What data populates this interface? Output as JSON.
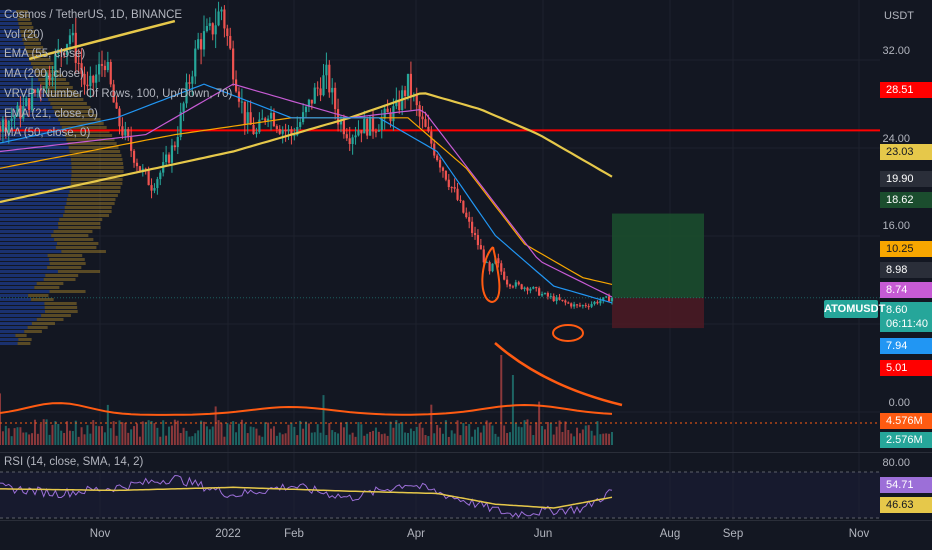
{
  "header": {
    "symbol_line": "Cosmos / TetherUS, 1D, BINANCE",
    "indicators": [
      "Vol (20)",
      "EMA (55, close)",
      "MA (200, close)",
      "VRVP (Number Of Rows, 100, Up/Down, 70)",
      "EMA (21, close, 0)",
      "MA (50, close, 0)"
    ],
    "rsi_label": "RSI (14, close, SMA, 14, 2)",
    "currency": "USDT",
    "symbol_tag": "ATOMUSDT",
    "countdown": "06:11:40"
  },
  "colors": {
    "background": "#131722",
    "up_candle": "#26a69a",
    "down_candle": "#ef5350",
    "ema55": "#f7a600",
    "ma200": "#e6c84a",
    "ema21": "#2196f3",
    "ma50": "#c65bd4",
    "resistance_line": "#ff0000",
    "drawing": "#ff5b12",
    "rsi": "#9c6fd8",
    "rsi_ma": "#e6c84a",
    "long_target": "#1b4d2e",
    "long_stop": "#4a1a23"
  },
  "price_axis": {
    "ticks": [
      "32.00",
      "24.00",
      "16.00",
      "8.00",
      "0.00"
    ],
    "labels": [
      {
        "text": "28.51",
        "color": "#ff0000"
      },
      {
        "text": "23.03",
        "color": "#e6c84a",
        "text_color": "#131722"
      },
      {
        "text": "19.90",
        "color": "#2a2e39"
      },
      {
        "text": "18.62",
        "color": "#1b4d2e"
      },
      {
        "text": "10.25",
        "color": "#f7a600",
        "text_color": "#131722"
      },
      {
        "text": "8.98",
        "color": "#2a2e39"
      },
      {
        "text": "8.74",
        "color": "#c65bd4"
      },
      {
        "text": "8.60",
        "color": "#26a69a"
      },
      {
        "text": "7.94",
        "color": "#2196f3"
      },
      {
        "text": "5.01",
        "color": "#ff0000"
      },
      {
        "text": "4.576M",
        "color": "#ff5b12"
      },
      {
        "text": "2.576M",
        "color": "#26a69a"
      }
    ],
    "rsi_ticks": [
      "80.00"
    ],
    "rsi_labels": [
      {
        "text": "54.71",
        "color": "#9c6fd8"
      },
      {
        "text": "46.63",
        "color": "#e6c84a",
        "text_color": "#131722"
      }
    ]
  },
  "chart_data": {
    "type": "candlestick",
    "title": "Cosmos / TetherUS, 1D, BINANCE",
    "x_ticks": [
      "Nov",
      "2022",
      "Feb",
      "Apr",
      "Jun",
      "Aug",
      "Sep",
      "Nov"
    ],
    "y_unit": "USDT",
    "ylim": [
      3,
      44
    ],
    "resistance_level": 28.51,
    "long_position": {
      "entry": 8.6,
      "target": 18.62,
      "stop": 5.01
    },
    "close_path": [
      [
        0,
        29
      ],
      [
        8,
        31
      ],
      [
        16,
        35
      ],
      [
        24,
        40
      ],
      [
        30,
        33
      ],
      [
        36,
        37
      ],
      [
        40,
        30
      ],
      [
        44,
        27
      ],
      [
        48,
        24
      ],
      [
        52,
        22
      ],
      [
        56,
        24
      ],
      [
        60,
        27
      ],
      [
        64,
        33
      ],
      [
        68,
        39
      ],
      [
        72,
        40
      ],
      [
        76,
        43
      ],
      [
        80,
        36
      ],
      [
        84,
        30
      ],
      [
        88,
        28
      ],
      [
        92,
        31
      ],
      [
        96,
        29
      ],
      [
        100,
        28
      ],
      [
        104,
        30
      ],
      [
        108,
        33
      ],
      [
        112,
        35
      ],
      [
        116,
        30
      ],
      [
        120,
        28
      ],
      [
        124,
        29
      ],
      [
        128,
        29
      ],
      [
        132,
        30
      ],
      [
        136,
        31
      ],
      [
        140,
        34
      ],
      [
        144,
        30
      ],
      [
        148,
        27
      ],
      [
        152,
        24
      ],
      [
        156,
        21
      ],
      [
        160,
        18
      ],
      [
        164,
        15
      ],
      [
        168,
        11.5
      ],
      [
        170,
        13
      ],
      [
        174,
        10.5
      ],
      [
        178,
        10
      ],
      [
        182,
        9.8
      ],
      [
        186,
        9
      ],
      [
        190,
        8.5
      ],
      [
        194,
        8
      ],
      [
        198,
        7.6
      ],
      [
        202,
        7.8
      ],
      [
        206,
        8.3
      ],
      [
        210,
        8.6
      ]
    ],
    "ema21": [
      [
        0,
        27
      ],
      [
        40,
        30
      ],
      [
        70,
        34
      ],
      [
        100,
        30
      ],
      [
        130,
        30
      ],
      [
        150,
        26
      ],
      [
        170,
        16
      ],
      [
        190,
        10
      ],
      [
        210,
        8
      ]
    ],
    "ema55": [
      [
        0,
        24
      ],
      [
        60,
        28
      ],
      [
        100,
        30
      ],
      [
        140,
        30
      ],
      [
        160,
        24
      ],
      [
        180,
        15
      ],
      [
        200,
        11
      ],
      [
        210,
        10.2
      ]
    ],
    "ma50": [
      [
        0,
        26
      ],
      [
        50,
        28
      ],
      [
        80,
        34
      ],
      [
        120,
        30
      ],
      [
        145,
        31
      ],
      [
        165,
        22
      ],
      [
        185,
        13
      ],
      [
        210,
        8.7
      ]
    ],
    "ma200": [
      [
        0,
        20
      ],
      [
        40,
        23
      ],
      [
        80,
        26
      ],
      [
        120,
        30
      ],
      [
        145,
        33
      ],
      [
        165,
        31
      ],
      [
        185,
        28
      ],
      [
        210,
        23
      ]
    ],
    "rsi": [
      [
        0,
        60
      ],
      [
        20,
        52
      ],
      [
        40,
        60
      ],
      [
        60,
        72
      ],
      [
        80,
        50
      ],
      [
        100,
        62
      ],
      [
        120,
        46
      ],
      [
        140,
        65
      ],
      [
        160,
        42
      ],
      [
        175,
        25
      ],
      [
        190,
        30
      ],
      [
        200,
        32
      ],
      [
        210,
        55
      ]
    ],
    "rsi_ma": [
      [
        0,
        58
      ],
      [
        40,
        56
      ],
      [
        80,
        60
      ],
      [
        120,
        55
      ],
      [
        150,
        52
      ],
      [
        170,
        38
      ],
      [
        190,
        33
      ],
      [
        210,
        47
      ]
    ]
  }
}
